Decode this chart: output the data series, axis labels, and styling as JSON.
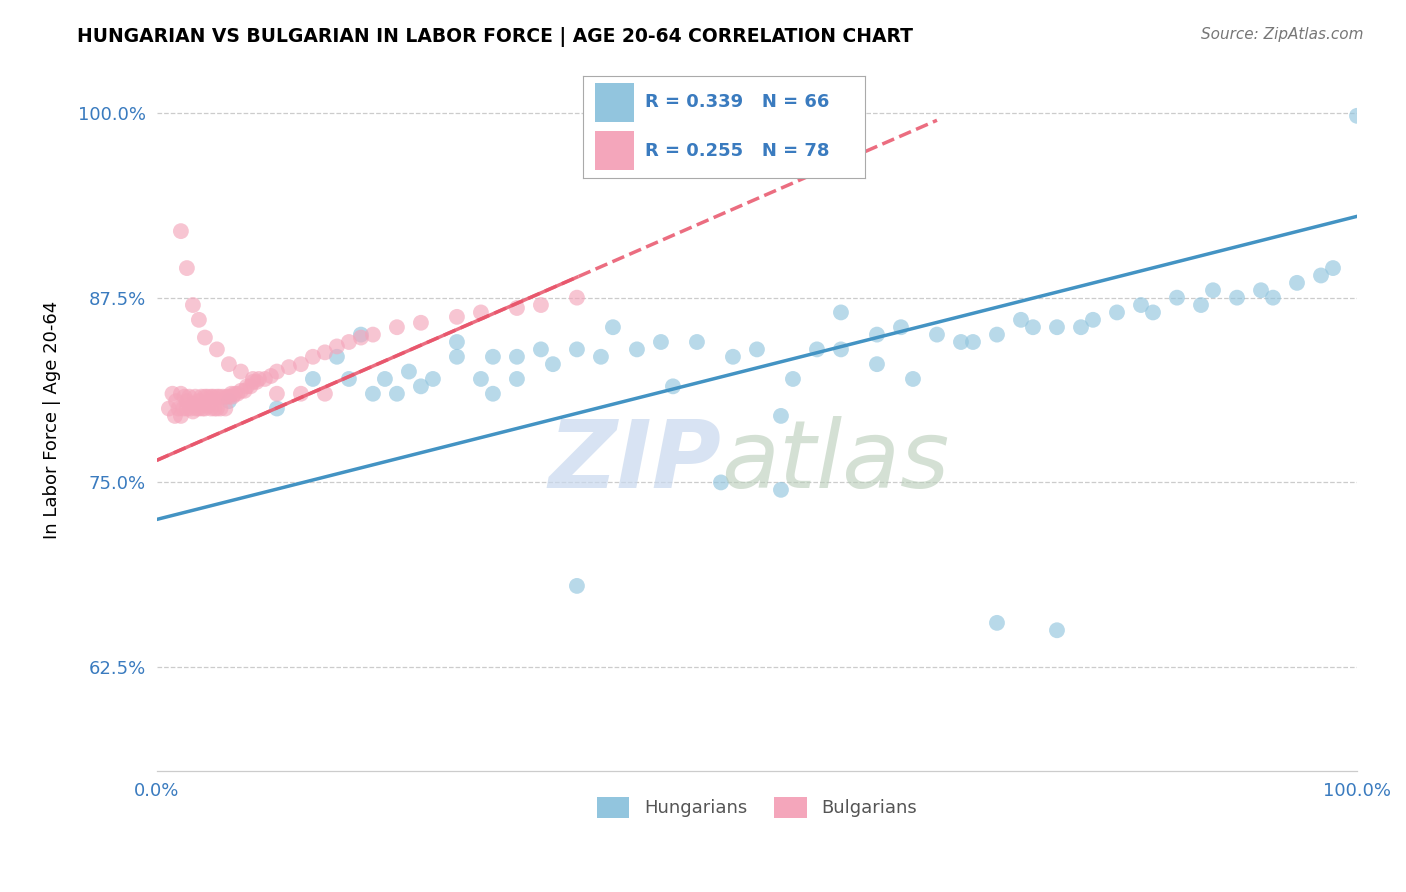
{
  "title": "HUNGARIAN VS BULGARIAN IN LABOR FORCE | AGE 20-64 CORRELATION CHART",
  "source_text": "Source: ZipAtlas.com",
  "ylabel": "In Labor Force | Age 20-64",
  "xlim": [
    0.0,
    1.0
  ],
  "ylim": [
    0.555,
    1.03
  ],
  "yticks": [
    0.625,
    0.75,
    0.875,
    1.0
  ],
  "ytick_labels": [
    "62.5%",
    "75.0%",
    "87.5%",
    "100.0%"
  ],
  "xticks": [
    0.0,
    0.25,
    0.5,
    0.75,
    1.0
  ],
  "xtick_labels": [
    "0.0%",
    "",
    "",
    "",
    "100.0%"
  ],
  "blue_color": "#92c5de",
  "pink_color": "#f4a6bb",
  "blue_line_color": "#4393c3",
  "pink_line_color": "#e8546a",
  "legend_text_color": "#3a7bbf",
  "tick_color": "#3a7bbf",
  "grid_color": "#cccccc",
  "watermark_zip_color": "#c8d8ee",
  "watermark_atlas_color": "#b8ccb8",
  "hun_x": [
    0.06,
    0.1,
    0.13,
    0.15,
    0.16,
    0.17,
    0.18,
    0.19,
    0.2,
    0.21,
    0.22,
    0.23,
    0.25,
    0.25,
    0.27,
    0.28,
    0.28,
    0.3,
    0.3,
    0.32,
    0.33,
    0.35,
    0.37,
    0.38,
    0.4,
    0.42,
    0.43,
    0.45,
    0.48,
    0.5,
    0.52,
    0.53,
    0.55,
    0.57,
    0.57,
    0.6,
    0.6,
    0.62,
    0.63,
    0.65,
    0.67,
    0.68,
    0.7,
    0.72,
    0.73,
    0.75,
    0.77,
    0.78,
    0.8,
    0.82,
    0.83,
    0.85,
    0.87,
    0.88,
    0.9,
    0.92,
    0.93,
    0.95,
    0.97,
    0.98,
    0.52,
    0.47,
    0.35,
    0.7,
    0.75,
    1.0
  ],
  "hun_y": [
    0.805,
    0.8,
    0.82,
    0.835,
    0.82,
    0.85,
    0.81,
    0.82,
    0.81,
    0.825,
    0.815,
    0.82,
    0.835,
    0.845,
    0.82,
    0.835,
    0.81,
    0.835,
    0.82,
    0.84,
    0.83,
    0.84,
    0.835,
    0.855,
    0.84,
    0.845,
    0.815,
    0.845,
    0.835,
    0.84,
    0.795,
    0.82,
    0.84,
    0.84,
    0.865,
    0.85,
    0.83,
    0.855,
    0.82,
    0.85,
    0.845,
    0.845,
    0.85,
    0.86,
    0.855,
    0.855,
    0.855,
    0.86,
    0.865,
    0.87,
    0.865,
    0.875,
    0.87,
    0.88,
    0.875,
    0.88,
    0.875,
    0.885,
    0.89,
    0.895,
    0.745,
    0.75,
    0.68,
    0.655,
    0.65,
    0.998
  ],
  "bul_x": [
    0.01,
    0.013,
    0.015,
    0.016,
    0.018,
    0.02,
    0.02,
    0.022,
    0.023,
    0.025,
    0.025,
    0.027,
    0.028,
    0.03,
    0.03,
    0.032,
    0.033,
    0.035,
    0.035,
    0.037,
    0.038,
    0.04,
    0.04,
    0.042,
    0.043,
    0.045,
    0.045,
    0.047,
    0.048,
    0.05,
    0.05,
    0.052,
    0.053,
    0.055,
    0.057,
    0.058,
    0.06,
    0.062,
    0.063,
    0.065,
    0.067,
    0.07,
    0.073,
    0.075,
    0.078,
    0.08,
    0.083,
    0.085,
    0.09,
    0.095,
    0.1,
    0.11,
    0.12,
    0.13,
    0.14,
    0.15,
    0.16,
    0.17,
    0.18,
    0.2,
    0.22,
    0.25,
    0.27,
    0.3,
    0.32,
    0.35,
    0.02,
    0.025,
    0.03,
    0.035,
    0.04,
    0.05,
    0.06,
    0.07,
    0.08,
    0.1,
    0.12,
    0.14
  ],
  "bul_y": [
    0.8,
    0.81,
    0.795,
    0.805,
    0.8,
    0.81,
    0.795,
    0.8,
    0.808,
    0.805,
    0.8,
    0.808,
    0.8,
    0.803,
    0.798,
    0.808,
    0.8,
    0.805,
    0.8,
    0.808,
    0.8,
    0.808,
    0.8,
    0.808,
    0.802,
    0.808,
    0.8,
    0.808,
    0.8,
    0.808,
    0.8,
    0.808,
    0.8,
    0.808,
    0.8,
    0.808,
    0.808,
    0.81,
    0.808,
    0.81,
    0.81,
    0.812,
    0.812,
    0.815,
    0.815,
    0.818,
    0.818,
    0.82,
    0.82,
    0.822,
    0.825,
    0.828,
    0.83,
    0.835,
    0.838,
    0.842,
    0.845,
    0.848,
    0.85,
    0.855,
    0.858,
    0.862,
    0.865,
    0.868,
    0.87,
    0.875,
    0.92,
    0.895,
    0.87,
    0.86,
    0.848,
    0.84,
    0.83,
    0.825,
    0.82,
    0.81,
    0.81,
    0.81
  ],
  "hun_line_x0": 0.0,
  "hun_line_y0": 0.725,
  "hun_line_x1": 1.0,
  "hun_line_y1": 0.93,
  "bul_line_x0": 0.0,
  "bul_line_y0": 0.765,
  "bul_line_x1": 0.65,
  "bul_line_y1": 0.995
}
